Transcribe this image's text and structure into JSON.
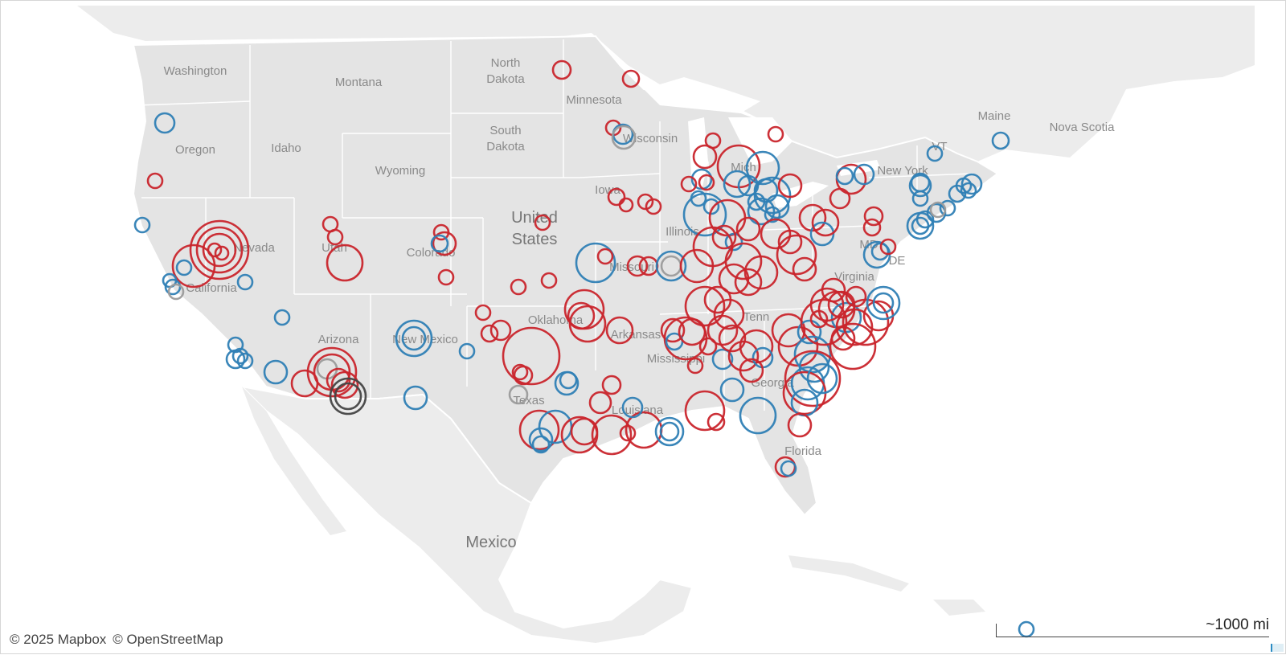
{
  "map": {
    "attribution": [
      "© 2025 Mapbox",
      "© OpenStreetMap"
    ],
    "scale_label": "~1000 mi",
    "colors": {
      "land": "#e6e6e6",
      "neighbor_land": "#ececec",
      "water": "#ffffff",
      "border": "#ffffff",
      "red": "#c9252c",
      "blue": "#2f7fb5",
      "gray": "#9b9b9b",
      "dark": "#444444"
    },
    "state_labels": [
      {
        "name": "washington",
        "text": "Washington"
      },
      {
        "name": "montana",
        "text": "Montana"
      },
      {
        "name": "north-dakota-1",
        "text": "North"
      },
      {
        "name": "north-dakota-2",
        "text": "Dakota"
      },
      {
        "name": "minnesota",
        "text": "Minnesota"
      },
      {
        "name": "oregon",
        "text": "Oregon"
      },
      {
        "name": "idaho",
        "text": "Idaho"
      },
      {
        "name": "south-dakota-1",
        "text": "South"
      },
      {
        "name": "south-dakota-2",
        "text": "Dakota"
      },
      {
        "name": "wisconsin",
        "text": "Wisconsin"
      },
      {
        "name": "wyoming",
        "text": "Wyoming"
      },
      {
        "name": "iowa",
        "text": "Iowa"
      },
      {
        "name": "nevada",
        "text": "Nevada"
      },
      {
        "name": "utah",
        "text": "Utah"
      },
      {
        "name": "colorado",
        "text": "Colorado"
      },
      {
        "name": "illinois",
        "text": "Illinois"
      },
      {
        "name": "missouri",
        "text": "Missouri"
      },
      {
        "name": "california",
        "text": "California"
      },
      {
        "name": "oklahoma",
        "text": "Oklahoma"
      },
      {
        "name": "arizona",
        "text": "Arizona"
      },
      {
        "name": "new-mexico",
        "text": "New Mexico"
      },
      {
        "name": "arkansas",
        "text": "Arkansas"
      },
      {
        "name": "mississippi",
        "text": "Mississippi"
      },
      {
        "name": "texas",
        "text": "Texas"
      },
      {
        "name": "louisiana",
        "text": "Louisiana"
      },
      {
        "name": "georgia",
        "text": "Georgia"
      },
      {
        "name": "florida",
        "text": "Florida"
      },
      {
        "name": "virginia",
        "text": "Virginia"
      },
      {
        "name": "new-york",
        "text": "New York"
      },
      {
        "name": "maine",
        "text": "Maine"
      },
      {
        "name": "nova-scotia",
        "text": "Nova Scotia"
      },
      {
        "name": "michigan",
        "text": "Mich"
      },
      {
        "name": "vermont",
        "text": "VT"
      },
      {
        "name": "delaware",
        "text": "DE"
      },
      {
        "name": "maryland",
        "text": "MD"
      },
      {
        "name": "tennessee",
        "text": "Tenn"
      }
    ],
    "country_labels": [
      {
        "name": "united-states-1",
        "text": "United"
      },
      {
        "name": "united-states-2",
        "text": "States"
      },
      {
        "name": "mexico",
        "text": "Mexico"
      }
    ]
  }
}
